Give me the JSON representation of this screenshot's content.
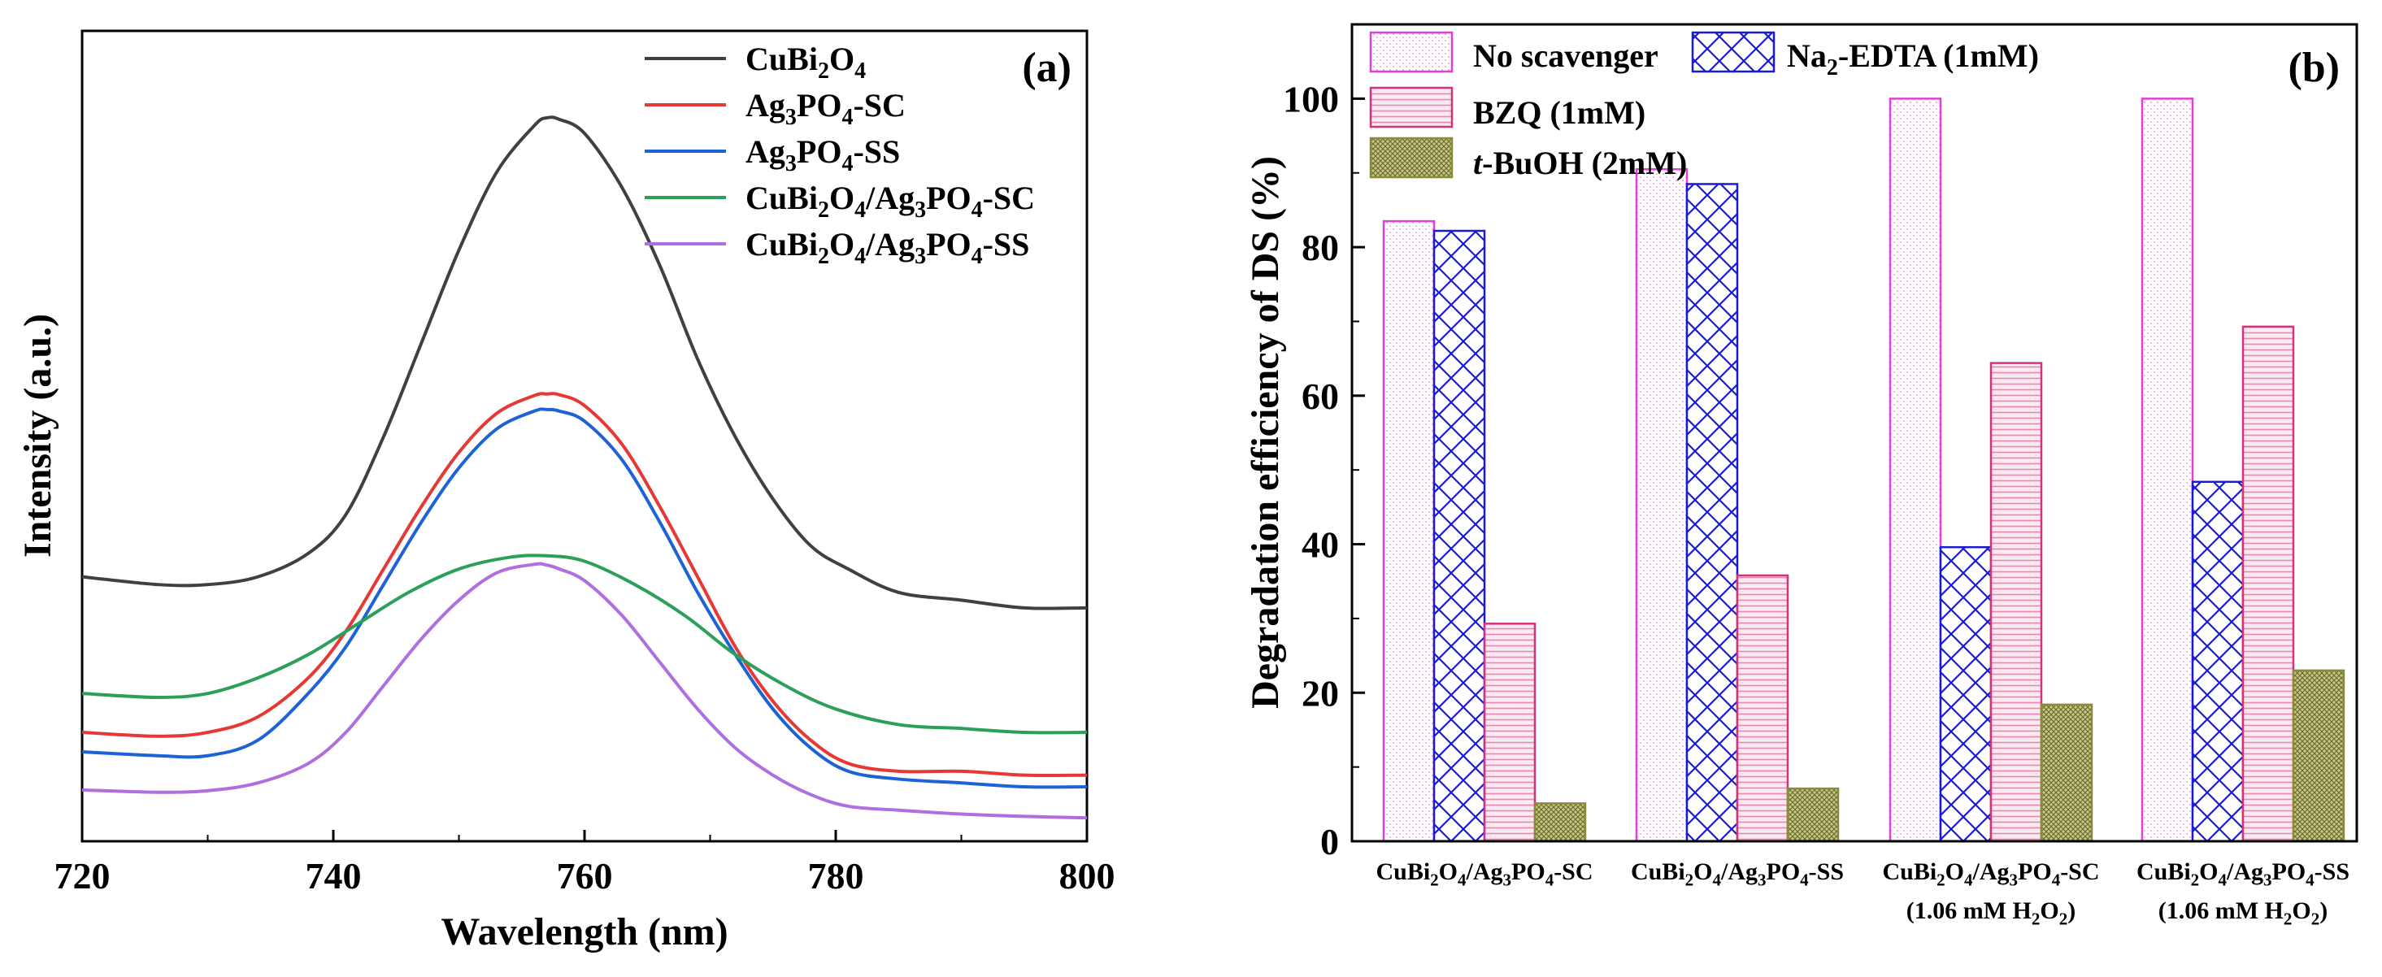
{
  "chart_data": [
    {
      "panel": "(a)",
      "type": "line",
      "xlabel": "Wavelength (nm)",
      "ylabel": "Intensity (a.u.)",
      "xlim": [
        720,
        800
      ],
      "ylim": [
        0,
        1.0
      ],
      "xticks": [
        720,
        740,
        760,
        780,
        800
      ],
      "series": [
        {
          "name": "CuBi2O4",
          "label_parts": [
            [
              "CuBi",
              ""
            ],
            [
              "2",
              "sub"
            ],
            [
              "O",
              ""
            ],
            [
              "4",
              "sub"
            ]
          ],
          "color": "#404040",
          "x": [
            720,
            726,
            730,
            734,
            738,
            741,
            744,
            747,
            750,
            753,
            756,
            757,
            758,
            760,
            763,
            766,
            769,
            772,
            775,
            778,
            781,
            785,
            790,
            795,
            800
          ],
          "y": [
            0.34,
            0.33,
            0.33,
            0.34,
            0.37,
            0.42,
            0.52,
            0.64,
            0.76,
            0.86,
            0.92,
            0.93,
            0.928,
            0.91,
            0.84,
            0.74,
            0.62,
            0.52,
            0.44,
            0.38,
            0.35,
            0.32,
            0.31,
            0.3,
            0.3
          ]
        },
        {
          "name": "Ag3PO4-SC",
          "label_parts": [
            [
              "Ag",
              ""
            ],
            [
              "3",
              "sub"
            ],
            [
              "PO",
              ""
            ],
            [
              "4",
              "sub"
            ],
            [
              "-SC",
              ""
            ]
          ],
          "color": "#e53935",
          "x": [
            720,
            726,
            730,
            734,
            738,
            741,
            744,
            747,
            750,
            753,
            756,
            757,
            758,
            760,
            763,
            766,
            769,
            772,
            775,
            778,
            781,
            785,
            790,
            795,
            800
          ],
          "y": [
            0.14,
            0.135,
            0.14,
            0.16,
            0.21,
            0.27,
            0.35,
            0.43,
            0.5,
            0.55,
            0.573,
            0.575,
            0.574,
            0.56,
            0.51,
            0.43,
            0.34,
            0.25,
            0.18,
            0.13,
            0.1,
            0.09,
            0.09,
            0.085,
            0.085
          ]
        },
        {
          "name": "Ag3PO4-SS",
          "label_parts": [
            [
              "Ag",
              ""
            ],
            [
              "3",
              "sub"
            ],
            [
              "PO",
              ""
            ],
            [
              "4",
              "sub"
            ],
            [
              "-SS",
              ""
            ]
          ],
          "color": "#1e63d6",
          "x": [
            720,
            726,
            730,
            734,
            738,
            741,
            744,
            747,
            750,
            753,
            756,
            757,
            758,
            760,
            763,
            766,
            769,
            772,
            775,
            778,
            781,
            785,
            790,
            795,
            800
          ],
          "y": [
            0.115,
            0.11,
            0.11,
            0.13,
            0.19,
            0.25,
            0.33,
            0.41,
            0.48,
            0.53,
            0.553,
            0.555,
            0.553,
            0.54,
            0.49,
            0.41,
            0.32,
            0.24,
            0.17,
            0.12,
            0.09,
            0.08,
            0.075,
            0.07,
            0.07
          ]
        },
        {
          "name": "CuBi2O4/Ag3PO4-SC",
          "label_parts": [
            [
              "CuBi",
              ""
            ],
            [
              "2",
              "sub"
            ],
            [
              "O",
              ""
            ],
            [
              "4",
              "sub"
            ],
            [
              "/Ag",
              ""
            ],
            [
              "3",
              "sub"
            ],
            [
              "PO",
              ""
            ],
            [
              "4",
              "sub"
            ],
            [
              "-SC",
              ""
            ]
          ],
          "color": "#2ca05a",
          "x": [
            720,
            726,
            730,
            734,
            738,
            742,
            746,
            750,
            754,
            757,
            760,
            764,
            768,
            772,
            776,
            780,
            785,
            790,
            795,
            800
          ],
          "y": [
            0.19,
            0.185,
            0.19,
            0.21,
            0.24,
            0.28,
            0.32,
            0.35,
            0.365,
            0.367,
            0.36,
            0.33,
            0.29,
            0.24,
            0.2,
            0.17,
            0.15,
            0.145,
            0.14,
            0.14
          ]
        },
        {
          "name": "CuBi2O4/Ag3PO4-SS",
          "label_parts": [
            [
              "CuBi",
              ""
            ],
            [
              "2",
              "sub"
            ],
            [
              "O",
              ""
            ],
            [
              "4",
              "sub"
            ],
            [
              "/Ag",
              ""
            ],
            [
              "3",
              "sub"
            ],
            [
              "PO",
              ""
            ],
            [
              "4",
              "sub"
            ],
            [
              "-SS",
              ""
            ]
          ],
          "color": "#b06fe0",
          "x": [
            720,
            726,
            730,
            734,
            738,
            741,
            744,
            747,
            750,
            753,
            756,
            757,
            758,
            760,
            763,
            766,
            769,
            772,
            775,
            778,
            781,
            785,
            790,
            795,
            800
          ],
          "y": [
            0.066,
            0.063,
            0.065,
            0.075,
            0.1,
            0.14,
            0.2,
            0.26,
            0.31,
            0.345,
            0.356,
            0.355,
            0.35,
            0.335,
            0.29,
            0.23,
            0.17,
            0.12,
            0.085,
            0.06,
            0.045,
            0.04,
            0.035,
            0.032,
            0.03
          ]
        }
      ]
    },
    {
      "panel": "(b)",
      "type": "bar",
      "ylabel": "Degradation efficiency of DS (%)",
      "ylim": [
        0,
        110
      ],
      "yticks": [
        0,
        20,
        40,
        60,
        80,
        100
      ],
      "categories": [
        {
          "line1": [
            [
              "CuBi",
              ""
            ],
            [
              "2",
              "sub"
            ],
            [
              "O",
              ""
            ],
            [
              "4",
              "sub"
            ],
            [
              "/Ag",
              ""
            ],
            [
              "3",
              "sub"
            ],
            [
              "PO",
              ""
            ],
            [
              "4",
              "sub"
            ],
            [
              "-SC",
              ""
            ]
          ],
          "line2": []
        },
        {
          "line1": [
            [
              "CuBi",
              ""
            ],
            [
              "2",
              "sub"
            ],
            [
              "O",
              ""
            ],
            [
              "4",
              "sub"
            ],
            [
              "/Ag",
              ""
            ],
            [
              "3",
              "sub"
            ],
            [
              "PO",
              ""
            ],
            [
              "4",
              "sub"
            ],
            [
              "-SS",
              ""
            ]
          ],
          "line2": []
        },
        {
          "line1": [
            [
              "CuBi",
              ""
            ],
            [
              "2",
              "sub"
            ],
            [
              "O",
              ""
            ],
            [
              "4",
              "sub"
            ],
            [
              "/Ag",
              ""
            ],
            [
              "3",
              "sub"
            ],
            [
              "PO",
              ""
            ],
            [
              "4",
              "sub"
            ],
            [
              "-SC",
              ""
            ]
          ],
          "line2": [
            [
              "(1.06 mM H",
              ""
            ],
            [
              "2",
              "sub"
            ],
            [
              "O",
              ""
            ],
            [
              "2",
              "sub"
            ],
            [
              ")",
              ""
            ]
          ]
        },
        {
          "line1": [
            [
              "CuBi",
              ""
            ],
            [
              "2",
              "sub"
            ],
            [
              "O",
              ""
            ],
            [
              "4",
              "sub"
            ],
            [
              "/Ag",
              ""
            ],
            [
              "3",
              "sub"
            ],
            [
              "PO",
              ""
            ],
            [
              "4",
              "sub"
            ],
            [
              "-SS",
              ""
            ]
          ],
          "line2": [
            [
              "(1.06 mM H",
              ""
            ],
            [
              "2",
              "sub"
            ],
            [
              "O",
              ""
            ],
            [
              "2",
              "sub"
            ],
            [
              ")",
              ""
            ]
          ]
        }
      ],
      "series": [
        {
          "name": "No scavenger",
          "label_parts": [
            [
              "No scavenger",
              ""
            ]
          ],
          "color": "#e040d8",
          "pattern": "dots",
          "values": [
            83.5,
            90.5,
            100,
            100
          ]
        },
        {
          "name": "Na2-EDTA (1mM)",
          "label_parts": [
            [
              "Na",
              ""
            ],
            [
              "2",
              "sub"
            ],
            [
              "-EDTA (1mM)",
              ""
            ]
          ],
          "color": "#1a1ad6",
          "pattern": "crosshatch",
          "values": [
            82.2,
            88.5,
            39.6,
            48.4
          ]
        },
        {
          "name": "BZQ (1mM)",
          "label_parts": [
            [
              "BZQ (1mM)",
              ""
            ]
          ],
          "color": "#d4327a",
          "pattern": "hlines",
          "values": [
            29.3,
            35.8,
            64.4,
            69.3
          ]
        },
        {
          "name": "t-BuOH (2mM)",
          "label_parts": [
            [
              "t",
              "italic"
            ],
            [
              "-BuOH (2mM)",
              ""
            ]
          ],
          "color": "#8a8a3a",
          "pattern": "dense",
          "values": [
            5.1,
            7.1,
            18.4,
            23.0
          ]
        }
      ]
    }
  ]
}
